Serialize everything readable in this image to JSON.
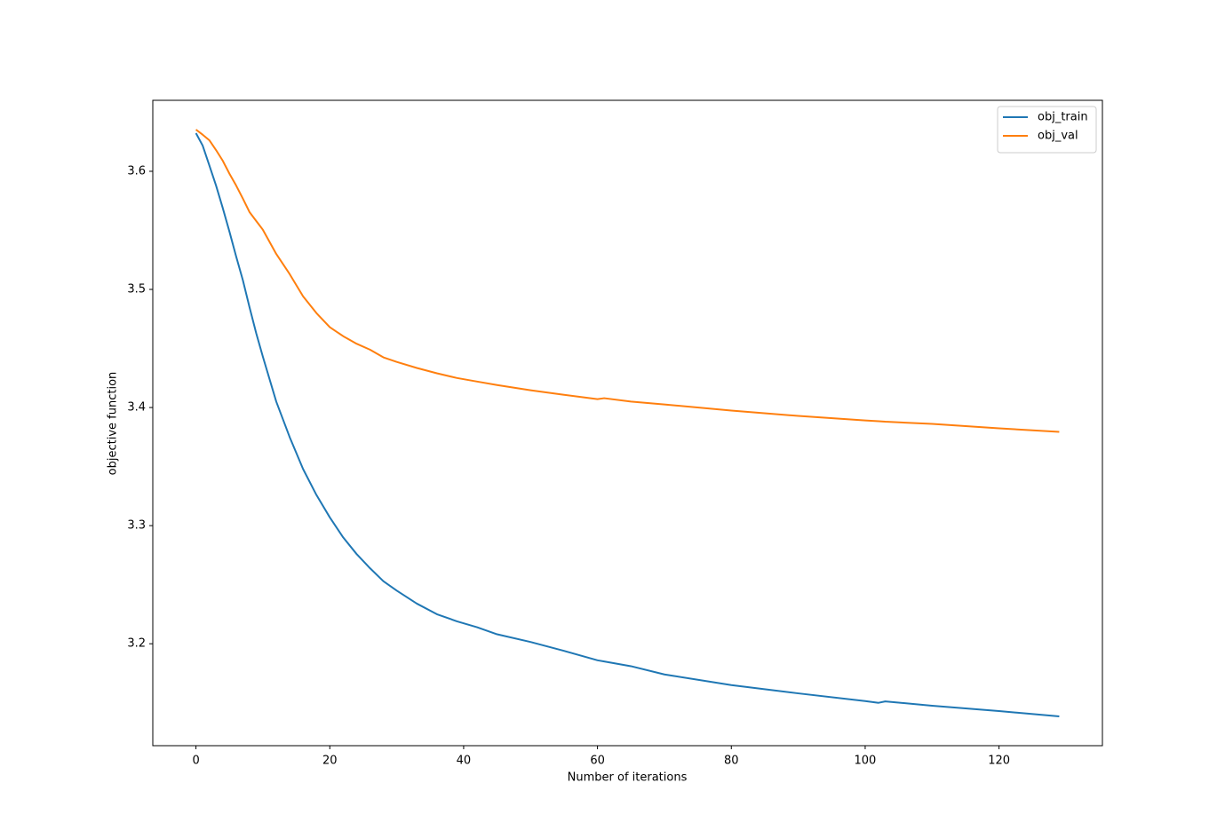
{
  "chart_data": {
    "type": "line",
    "xlabel": "Number of iterations",
    "ylabel": "objective function",
    "x": [
      0,
      1,
      2,
      3,
      4,
      5,
      6,
      7,
      8,
      9,
      10,
      12,
      14,
      16,
      18,
      20,
      22,
      24,
      26,
      28,
      30,
      33,
      36,
      39,
      42,
      45,
      50,
      55,
      60,
      61,
      65,
      70,
      80,
      90,
      100,
      102,
      103,
      110,
      120,
      129
    ],
    "series": [
      {
        "name": "obj_train",
        "color": "#1f77b4",
        "values": [
          3.6323,
          3.6218,
          3.605,
          3.588,
          3.569,
          3.549,
          3.528,
          3.508,
          3.485,
          3.463,
          3.443,
          3.405,
          3.375,
          3.348,
          3.326,
          3.307,
          3.29,
          3.276,
          3.264,
          3.253,
          3.245,
          3.234,
          3.225,
          3.219,
          3.214,
          3.208,
          3.2015,
          3.194,
          3.186,
          3.185,
          3.181,
          3.174,
          3.165,
          3.158,
          3.1515,
          3.15,
          3.1512,
          3.1475,
          3.143,
          3.1385
        ]
      },
      {
        "name": "obj_val",
        "color": "#ff7f0e",
        "values": [
          3.6353,
          3.631,
          3.6263,
          3.618,
          3.609,
          3.598,
          3.588,
          3.577,
          3.5655,
          3.558,
          3.5505,
          3.53,
          3.513,
          3.4942,
          3.48,
          3.468,
          3.4604,
          3.454,
          3.449,
          3.4425,
          3.4386,
          3.4335,
          3.429,
          3.425,
          3.422,
          3.419,
          3.4146,
          3.4108,
          3.4071,
          3.4079,
          3.405,
          3.4026,
          3.3974,
          3.3929,
          3.3891,
          3.3884,
          3.388,
          3.3861,
          3.3824,
          3.3794
        ]
      }
    ],
    "xlim": [
      -6.45,
      135.45
    ],
    "xticks": [
      0,
      20,
      40,
      60,
      80,
      100,
      120
    ],
    "ylim": [
      3.1137,
      3.6601
    ],
    "yticks": [
      3.2,
      3.3,
      3.4,
      3.5,
      3.6
    ],
    "grid": false,
    "legend": "upper right"
  }
}
